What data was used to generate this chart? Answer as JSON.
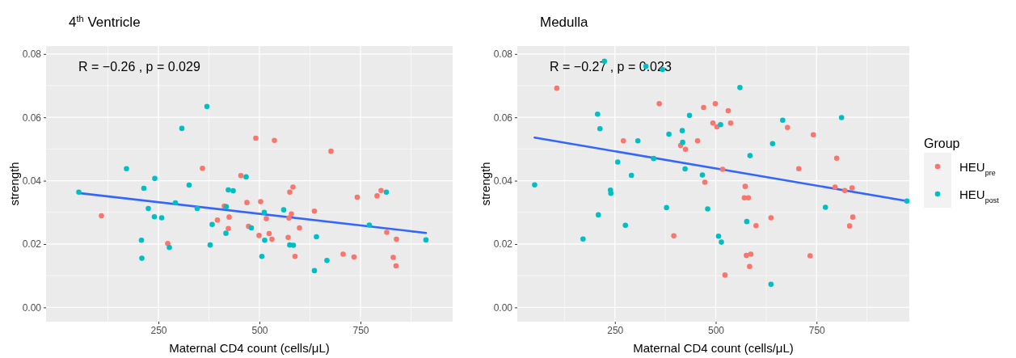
{
  "chart_data": [
    {
      "type": "scatter",
      "title": "4$^{th}$ Ventricle",
      "xlabel": "Maternal CD4 count (cells/μL)",
      "ylabel": "strength",
      "xlim": [
        -28,
        978
      ],
      "xticks": [
        250,
        500,
        750
      ],
      "ylim": [
        -0.0045,
        0.0825
      ],
      "yticks": [
        {
          "value": 0,
          "label": "0.00"
        },
        {
          "value": 0.02,
          "label": "0.02"
        },
        {
          "value": 0.04,
          "label": "0.04"
        },
        {
          "value": 0.06,
          "label": "0.06"
        },
        {
          "value": 0.08,
          "label": "0.08"
        }
      ],
      "grid": true,
      "annotations": [
        "R = −0.26 ,  p = 0.029"
      ],
      "series": [
        {
          "marker": "circle",
          "color": "#f8766d",
          "x": [
            109,
            273,
            359,
            396,
            413,
            425,
            423,
            454,
            469,
            473,
            491,
            537,
            677,
            583,
            575,
            503,
            742,
            791,
            801,
            517,
            579,
            573,
            636,
            599,
            815,
            499,
            524,
            531,
            571,
            839,
            588,
            707,
            734,
            831,
            838
          ],
          "values": [
            0.0289,
            0.0202,
            0.0439,
            0.0276,
            0.032,
            0.0285,
            0.0249,
            0.0416,
            0.0331,
            0.0256,
            0.0534,
            0.0527,
            0.0493,
            0.038,
            0.0364,
            0.0334,
            0.0348,
            0.0352,
            0.0369,
            0.028,
            0.0295,
            0.0282,
            0.0304,
            0.0251,
            0.0237,
            0.0227,
            0.0233,
            0.0215,
            0.0221,
            0.0215,
            0.0161,
            0.0168,
            0.0159,
            0.0158,
            0.0131
          ]
        },
        {
          "marker": "circle",
          "color": "#00bfc4",
          "x": [
            53,
            171,
            208,
            209,
            214,
            225,
            241,
            240,
            258,
            277,
            292,
            308,
            326,
            346,
            370,
            378,
            383,
            418,
            417,
            423,
            435,
            467,
            480,
            814,
            560,
            512,
            772,
            513,
            641,
            912,
            575,
            584,
            506,
            667,
            636
          ],
          "values": [
            0.0364,
            0.0438,
            0.0212,
            0.0155,
            0.0376,
            0.0312,
            0.0407,
            0.0286,
            0.0283,
            0.0189,
            0.033,
            0.0565,
            0.0386,
            0.0312,
            0.0634,
            0.0197,
            0.0262,
            0.0318,
            0.0234,
            0.0371,
            0.0368,
            0.0412,
            0.0251,
            0.0364,
            0.0308,
            0.03,
            0.026,
            0.0212,
            0.0223,
            0.0213,
            0.0197,
            0.0196,
            0.0161,
            0.0148,
            0.0116
          ]
        },
        {
          "type": "line",
          "color": "#3366ff",
          "x": [
            53,
            912
          ],
          "values": [
            0.0361,
            0.0235
          ]
        }
      ]
    },
    {
      "type": "scatter",
      "title": "Medulla",
      "xlabel": "Maternal CD4 count (cells/μL)",
      "ylabel": "strength",
      "xlim": [
        8,
        980
      ],
      "xticks": [
        250,
        500,
        750
      ],
      "ylim": [
        -0.0045,
        0.0825
      ],
      "yticks": [
        {
          "value": 0,
          "label": "0.00"
        },
        {
          "value": 0.02,
          "label": "0.02"
        },
        {
          "value": 0.04,
          "label": "0.04"
        },
        {
          "value": 0.06,
          "label": "0.06"
        },
        {
          "value": 0.08,
          "label": "0.08"
        }
      ],
      "grid": true,
      "legend": "right",
      "legend_title": "Group",
      "annotations": [
        "R = −0.27 ,  p = 0.023"
      ],
      "series": [
        {
          "name": "HEU$_{pre}$",
          "marker": "circle",
          "color": "#f8766d",
          "x": [
            106,
            271,
            360,
            396,
            413,
            425,
            455,
            470,
            473,
            493,
            499,
            503,
            517,
            523,
            531,
            537,
            573,
            571,
            581,
            600,
            637,
            576,
            587,
            584,
            678,
            742,
            706,
            734,
            796,
            800,
            820,
            838,
            840,
            832
          ],
          "values": [
            0.0692,
            0.0526,
            0.0643,
            0.0226,
            0.0511,
            0.0499,
            0.0526,
            0.0631,
            0.0395,
            0.0582,
            0.0643,
            0.057,
            0.0436,
            0.0102,
            0.0621,
            0.0582,
            0.0382,
            0.0346,
            0.0346,
            0.0258,
            0.0283,
            0.0164,
            0.0168,
            0.0129,
            0.0568,
            0.0545,
            0.0438,
            0.0163,
            0.038,
            0.0471,
            0.0369,
            0.0377,
            0.0285,
            0.0257
          ]
        },
        {
          "name": "HEU$_{post}$",
          "marker": "circle",
          "color": "#00bfc4",
          "x": [
            51,
            171,
            207,
            209,
            213,
            224,
            239,
            240,
            257,
            276,
            291,
            307,
            327,
            346,
            368,
            378,
            384,
            417,
            418,
            424,
            435,
            467,
            480,
            512,
            507,
            514,
            560,
            641,
            585,
            577,
            637,
            666,
            772,
            812,
            974
          ],
          "values": [
            0.0387,
            0.0216,
            0.061,
            0.0292,
            0.0564,
            0.0777,
            0.037,
            0.036,
            0.0459,
            0.0259,
            0.0417,
            0.0526,
            0.0761,
            0.047,
            0.0751,
            0.0315,
            0.0547,
            0.0558,
            0.0521,
            0.0437,
            0.0606,
            0.0418,
            0.0311,
            0.0577,
            0.0225,
            0.0206,
            0.0694,
            0.0517,
            0.0479,
            0.0271,
            0.0073,
            0.0591,
            0.0316,
            0.0599,
            0.0336
          ]
        },
        {
          "type": "line",
          "color": "#3366ff",
          "x": [
            51,
            974
          ],
          "values": [
            0.0536,
            0.0336
          ]
        }
      ]
    }
  ]
}
